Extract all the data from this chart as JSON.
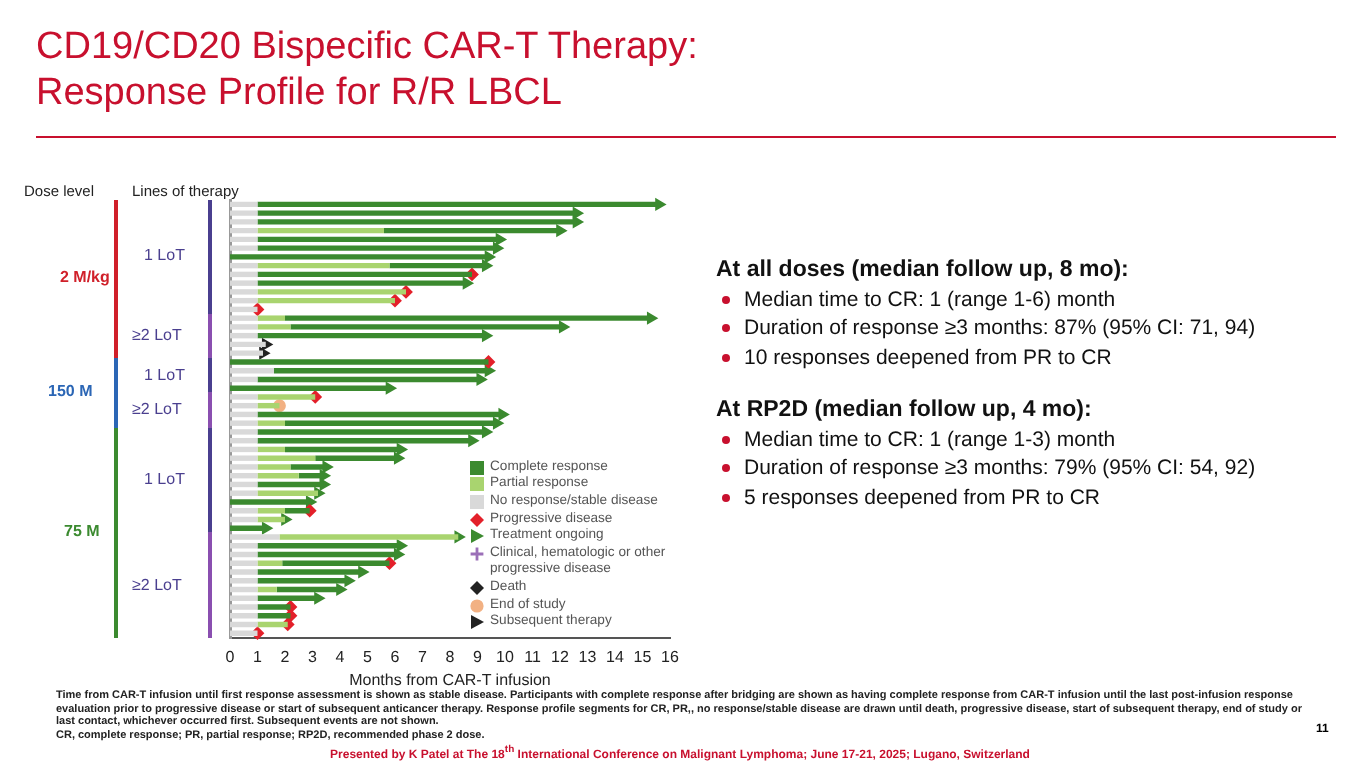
{
  "chart_data": {
    "type": "bar",
    "orientation": "horizontal",
    "stacked": true,
    "title": "CD19/CD20 Bispecific CAR-T Therapy: Response Profile for R/R LBCL",
    "xlabel": "Months from CAR-T infusion",
    "categories": [
      null,
      null,
      null,
      null,
      null,
      null,
      null,
      null,
      null,
      null,
      null,
      null,
      null,
      null,
      null,
      null,
      null,
      null,
      null,
      null,
      null,
      null,
      null,
      null,
      null,
      null,
      null,
      null,
      null,
      null,
      null,
      null,
      null,
      null,
      null,
      null,
      null,
      null,
      null,
      null,
      null,
      null,
      null,
      null,
      null,
      null,
      null,
      null,
      null,
      null
    ],
    "xlim": [
      0,
      16
    ],
    "xticks": [
      0,
      1,
      2,
      3,
      4,
      5,
      6,
      7,
      8,
      9,
      10,
      11,
      12,
      13,
      14,
      15,
      16
    ],
    "grid": false,
    "legend": "bottom right",
    "tick_labels": "x",
    "series": [
      {
        "name": "No response/stable disease",
        "color": "#d9d9d9",
        "values": [
          1,
          1,
          1,
          1,
          1,
          1,
          0,
          1,
          1,
          1,
          1,
          1,
          1,
          1,
          1,
          1,
          1.3,
          1.2,
          0,
          1.6,
          1,
          0,
          1,
          1,
          1,
          1,
          1,
          1,
          1,
          1,
          1,
          1,
          1,
          1,
          0,
          1,
          1,
          0,
          1.8,
          1,
          1,
          1,
          1,
          1,
          1,
          1,
          1,
          1,
          1,
          1
        ]
      },
      {
        "name": "Partial response",
        "color": "#a9d46f",
        "values": [
          0,
          0,
          0,
          4.6,
          0,
          0,
          0,
          4.8,
          0,
          0,
          5.4,
          5,
          0,
          1,
          1.2,
          0,
          0,
          0,
          0,
          0,
          0,
          0,
          2.1,
          0.8,
          0,
          1,
          0,
          0,
          1,
          2.1,
          1.2,
          1.5,
          0,
          2.2,
          0,
          1,
          1,
          0,
          6.5,
          0,
          0,
          0.9,
          0,
          0,
          0.7,
          0,
          0,
          0,
          1.1,
          0
        ]
      },
      {
        "name": "Complete response",
        "color": "#3b8a2f",
        "values": [
          14.6,
          11.6,
          11.6,
          6.4,
          8.8,
          8.7,
          9.4,
          3.5,
          7.8,
          7.6,
          0,
          0,
          0,
          13.3,
          9.9,
          8.3,
          0,
          0,
          9.4,
          7.8,
          8.1,
          5.8,
          0,
          0,
          8.9,
          7.7,
          8.3,
          7.8,
          4.2,
          3,
          1.3,
          0.9,
          2.4,
          0,
          2.9,
          0.9,
          0,
          1.3,
          0,
          5.2,
          5.1,
          3.9,
          3.8,
          3.3,
          2.3,
          2.2,
          1.2,
          1.2,
          0,
          0
        ]
      },
      {
        "name": "Progressive disease",
        "type": "scatter",
        "marker": "diamond",
        "color": "#e3202a",
        "values": [
          null,
          null,
          null,
          null,
          null,
          null,
          null,
          null,
          8.8,
          null,
          6.4,
          6,
          1,
          null,
          null,
          null,
          null,
          null,
          9.4,
          null,
          null,
          null,
          3.1,
          null,
          null,
          null,
          null,
          null,
          null,
          null,
          null,
          null,
          null,
          null,
          null,
          2.9,
          null,
          null,
          null,
          null,
          null,
          5.8,
          null,
          null,
          null,
          null,
          2.2,
          2.2,
          2.1,
          1
        ]
      },
      {
        "name": "Treatment ongoing",
        "type": "scatter",
        "marker": "triangle",
        "color": "#3b8a2f",
        "values": [
          15.6,
          12.6,
          12.6,
          12,
          9.8,
          9.7,
          9.4,
          9.3,
          null,
          8.6,
          null,
          null,
          null,
          15.3,
          12.1,
          9.3,
          null,
          null,
          null,
          9.4,
          9.1,
          5.8,
          null,
          null,
          9.9,
          9.7,
          9.3,
          8.8,
          6.2,
          6.1,
          3.5,
          3.4,
          3.4,
          3.2,
          2.9,
          null,
          2,
          1.3,
          8.3,
          6.2,
          6.1,
          null,
          4.8,
          4.3,
          4,
          3.2,
          null,
          null,
          null,
          null
        ]
      },
      {
        "name": "Clinical, hematologic or other progressive disease",
        "type": "scatter",
        "marker": "cross",
        "color": "#9b6fb8",
        "values": [
          null,
          null,
          null,
          null,
          null,
          null,
          null,
          null,
          null,
          null,
          null,
          null,
          null,
          null,
          null,
          null,
          null,
          null,
          null,
          null,
          null,
          null,
          null,
          null,
          null,
          null,
          null,
          null,
          null,
          null,
          null,
          null,
          null,
          null,
          null,
          null,
          null,
          null,
          null,
          null,
          null,
          null,
          null,
          null,
          null,
          null,
          null,
          null,
          null,
          null
        ]
      },
      {
        "name": "Death",
        "type": "scatter",
        "marker": "diamond",
        "color": "#222222",
        "values": [
          null,
          null,
          null,
          null,
          null,
          null,
          null,
          null,
          null,
          null,
          null,
          null,
          null,
          null,
          null,
          null,
          null,
          null,
          null,
          null,
          null,
          null,
          null,
          null,
          null,
          null,
          null,
          null,
          null,
          null,
          null,
          null,
          null,
          null,
          null,
          null,
          null,
          null,
          null,
          null,
          null,
          null,
          null,
          null,
          null,
          null,
          null,
          null,
          null,
          null
        ]
      },
      {
        "name": "End of study",
        "type": "scatter",
        "marker": "circle",
        "color": "#f2b183",
        "values": [
          null,
          null,
          null,
          null,
          null,
          null,
          null,
          null,
          null,
          null,
          null,
          null,
          null,
          null,
          null,
          null,
          null,
          null,
          null,
          null,
          null,
          null,
          null,
          1.8,
          null,
          null,
          null,
          null,
          null,
          null,
          null,
          null,
          null,
          null,
          null,
          null,
          null,
          null,
          null,
          null,
          null,
          null,
          null,
          null,
          null,
          null,
          null,
          null,
          null,
          null
        ]
      },
      {
        "name": "Subsequent therapy",
        "type": "scatter",
        "marker": "triangle",
        "color": "#222222",
        "values": [
          null,
          null,
          null,
          null,
          null,
          null,
          null,
          null,
          null,
          null,
          null,
          null,
          null,
          null,
          null,
          null,
          1.3,
          1.2,
          null,
          null,
          null,
          null,
          null,
          null,
          null,
          null,
          null,
          null,
          null,
          null,
          null,
          null,
          null,
          null,
          null,
          null,
          null,
          null,
          null,
          null,
          null,
          null,
          null,
          null,
          null,
          null,
          null,
          null,
          null,
          null
        ]
      }
    ],
    "annotations": [
      "Dose level",
      "Lines of therapy",
      "2 M/kg",
      "1 LoT",
      "≥2 LoT",
      "150 M",
      "1 LoT",
      "≥2 LoT",
      "75 M",
      "1 LoT",
      "≥2 LoT",
      "At all doses (median follow up, 8 mo):",
      "Median time to CR: 1 (range 1-6) month",
      "Duration of response ≥3 months: 87% (95% CI: 71, 94)",
      "10 responses deepened from PR to CR",
      "At RP2D (median follow up, 4 mo):",
      "Median time to CR: 1 (range 1-3) month",
      "Duration of response ≥3 months: 79% (95% CI: 54, 92)",
      "5 responses deepened from PR to CR",
      "Time from CAR-T infusion until first response assessment is shown as stable disease. Participants with complete response after bridging are shown as having complete response from CAR-T infusion until the last post-infusion response evaluation prior to progressive disease or start of subsequent anticancer therapy. Response profile segments for CR, PR,, no response/stable disease are drawn until death, progressive disease, start of subsequent therapy, end of study or last contact, whichever occurred first. Subsequent events are not shown.",
      "CR, complete response; PR, partial response; RP2D, recommended phase 2 dose.",
      "Presented by K Patel at The 18$^{th}$ International Conference  on Malignant Lymphoma; June 17-21, 2025; Lugano, Switzerland",
      "11"
    ]
  }
}
